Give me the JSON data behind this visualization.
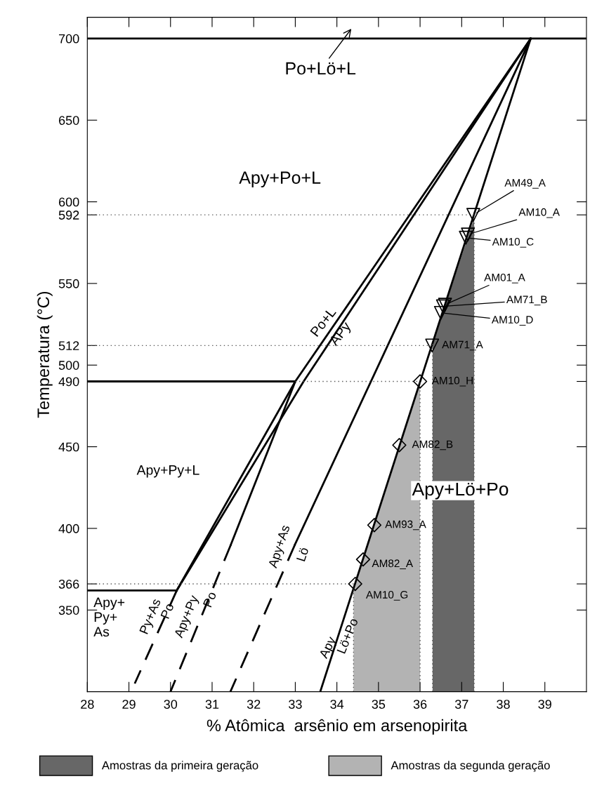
{
  "chart_data": {
    "type": "line",
    "xlabel": "% Atômica  arsênio em arsenopirita",
    "ylabel": "Temperatura (°C)",
    "xlim": [
      28,
      40
    ],
    "xticks": [
      28,
      29,
      30,
      31,
      32,
      33,
      34,
      35,
      36,
      37,
      38,
      39
    ],
    "ylim": [
      300,
      713
    ],
    "yticks": [
      350,
      366,
      400,
      450,
      490,
      500,
      512,
      550,
      592,
      600,
      650,
      700
    ],
    "grid": false,
    "legend": "bottom",
    "series": [
      {
        "type": "area",
        "name": "Amostras da primeira geração",
        "color": "#676767",
        "x": [
          36.3,
          37.3
        ],
        "values": [
          513,
          590
        ]
      },
      {
        "type": "area",
        "name": "Amostras da segunda geração",
        "color": "#b3b3b3",
        "x": [
          34.4,
          36.0
        ],
        "values": [
          364,
          490
        ]
      },
      {
        "color": "#000000",
        "line_style": "solid",
        "x": [
          28,
          40
        ],
        "values": [
          700,
          700
        ]
      },
      {
        "color": "#000000",
        "line_style": "solid",
        "x": [
          28,
          33.0
        ],
        "values": [
          490,
          490
        ]
      },
      {
        "color": "#000000",
        "line_style": "solid",
        "x": [
          28,
          30.15
        ],
        "values": [
          362,
          362
        ]
      },
      {
        "color": "#000000",
        "line_style": "solid",
        "x": [
          38.66,
          33.0,
          30.15
        ],
        "values": [
          700,
          490,
          362
        ]
      },
      {
        "color": "#000000",
        "line_style": "solid",
        "x": [
          38.66,
          33.2,
          30.15
        ],
        "values": [
          700,
          490,
          362
        ]
      },
      {
        "color": "#000000",
        "line_style": "solid",
        "x": [
          33.0,
          31.45
        ],
        "values": [
          490,
          390
        ]
      },
      {
        "color": "#000000",
        "line_style": "dashed",
        "x": [
          31.45,
          30.0
        ],
        "values": [
          390,
          300
        ]
      },
      {
        "color": "#000000",
        "line_style": "dashed",
        "x": [
          30.15,
          29.14
        ],
        "values": [
          362,
          305
        ]
      },
      {
        "color": "#000000",
        "line_style": "solid",
        "x": [
          38.66,
          32.99
        ],
        "values": [
          700,
          390
        ]
      },
      {
        "color": "#000000",
        "line_style": "dashed",
        "x": [
          32.99,
          31.44
        ],
        "values": [
          390,
          300
        ]
      },
      {
        "color": "#000000",
        "line_style": "solid",
        "x": [
          38.66,
          33.6
        ],
        "values": [
          700,
          300
        ]
      },
      {
        "color": "#555555",
        "line_style": "dotted",
        "x": [
          28,
          37.3
        ],
        "values": [
          592,
          592
        ]
      },
      {
        "color": "#555555",
        "line_style": "dotted",
        "x": [
          28,
          36.3
        ],
        "values": [
          512,
          512
        ]
      },
      {
        "color": "#555555",
        "line_style": "dotted",
        "x": [
          33.0,
          36.0
        ],
        "values": [
          490,
          490
        ]
      },
      {
        "color": "#555555",
        "line_style": "dotted",
        "x": [
          28,
          34.4
        ],
        "values": [
          366,
          366
        ]
      },
      {
        "color": "#555555",
        "line_style": "dotted",
        "x": [
          37.3,
          37.3
        ],
        "values": [
          300,
          590
        ]
      },
      {
        "color": "#555555",
        "line_style": "dotted",
        "x": [
          36.3,
          36.3
        ],
        "values": [
          300,
          513
        ]
      },
      {
        "color": "#555555",
        "line_style": "dotted",
        "x": [
          36.0,
          36.0
        ],
        "values": [
          300,
          490
        ]
      },
      {
        "color": "#555555",
        "line_style": "dotted",
        "x": [
          34.4,
          34.4
        ],
        "values": [
          300,
          364
        ]
      },
      {
        "type": "scatter",
        "marker": "triangle",
        "color": "#000000",
        "x": [
          37.28,
          37.15,
          37.1,
          36.6,
          36.55,
          36.5,
          36.29
        ],
        "values": [
          592,
          580,
          578,
          537,
          536,
          532,
          512
        ]
      },
      {
        "type": "scatter",
        "marker": "diamond",
        "color": "#000000",
        "x": [
          36.0,
          35.5,
          34.9,
          34.63,
          34.44
        ],
        "values": [
          490,
          451,
          402,
          381,
          366
        ]
      }
    ],
    "annotations": [
      "Po+Lö+L",
      "Apy+Po+L",
      "Apy+Py+L",
      "Apy+\nPy+\nAs",
      "Po+L",
      "APy",
      "Py+As",
      "Po",
      "Apy+Py",
      "Po",
      "Apy+As",
      "Lö",
      "Apy",
      "Lö+Po",
      "Apy+Lö+Po",
      {
        "text": "AM49_A",
        "x": 37.28,
        "y": 592
      },
      {
        "text": "AM10_A",
        "x": 37.15,
        "y": 580
      },
      {
        "text": "AM10_C",
        "x": 37.1,
        "y": 578
      },
      {
        "text": "AM01_A",
        "x": 36.6,
        "y": 537
      },
      {
        "text": "AM71_B",
        "x": 36.55,
        "y": 536
      },
      {
        "text": "AM10_D",
        "x": 36.5,
        "y": 532
      },
      {
        "text": "AM71_A",
        "x": 36.29,
        "y": 512
      },
      {
        "text": "AM10_H",
        "x": 36.0,
        "y": 490
      },
      {
        "text": "AM82_B",
        "x": 35.5,
        "y": 451
      },
      {
        "text": "AM93_A",
        "x": 34.9,
        "y": 402
      },
      {
        "text": "AM82_A",
        "x": 34.63,
        "y": 381
      },
      {
        "text": "AM10_G",
        "x": 34.44,
        "y": 366
      }
    ]
  }
}
